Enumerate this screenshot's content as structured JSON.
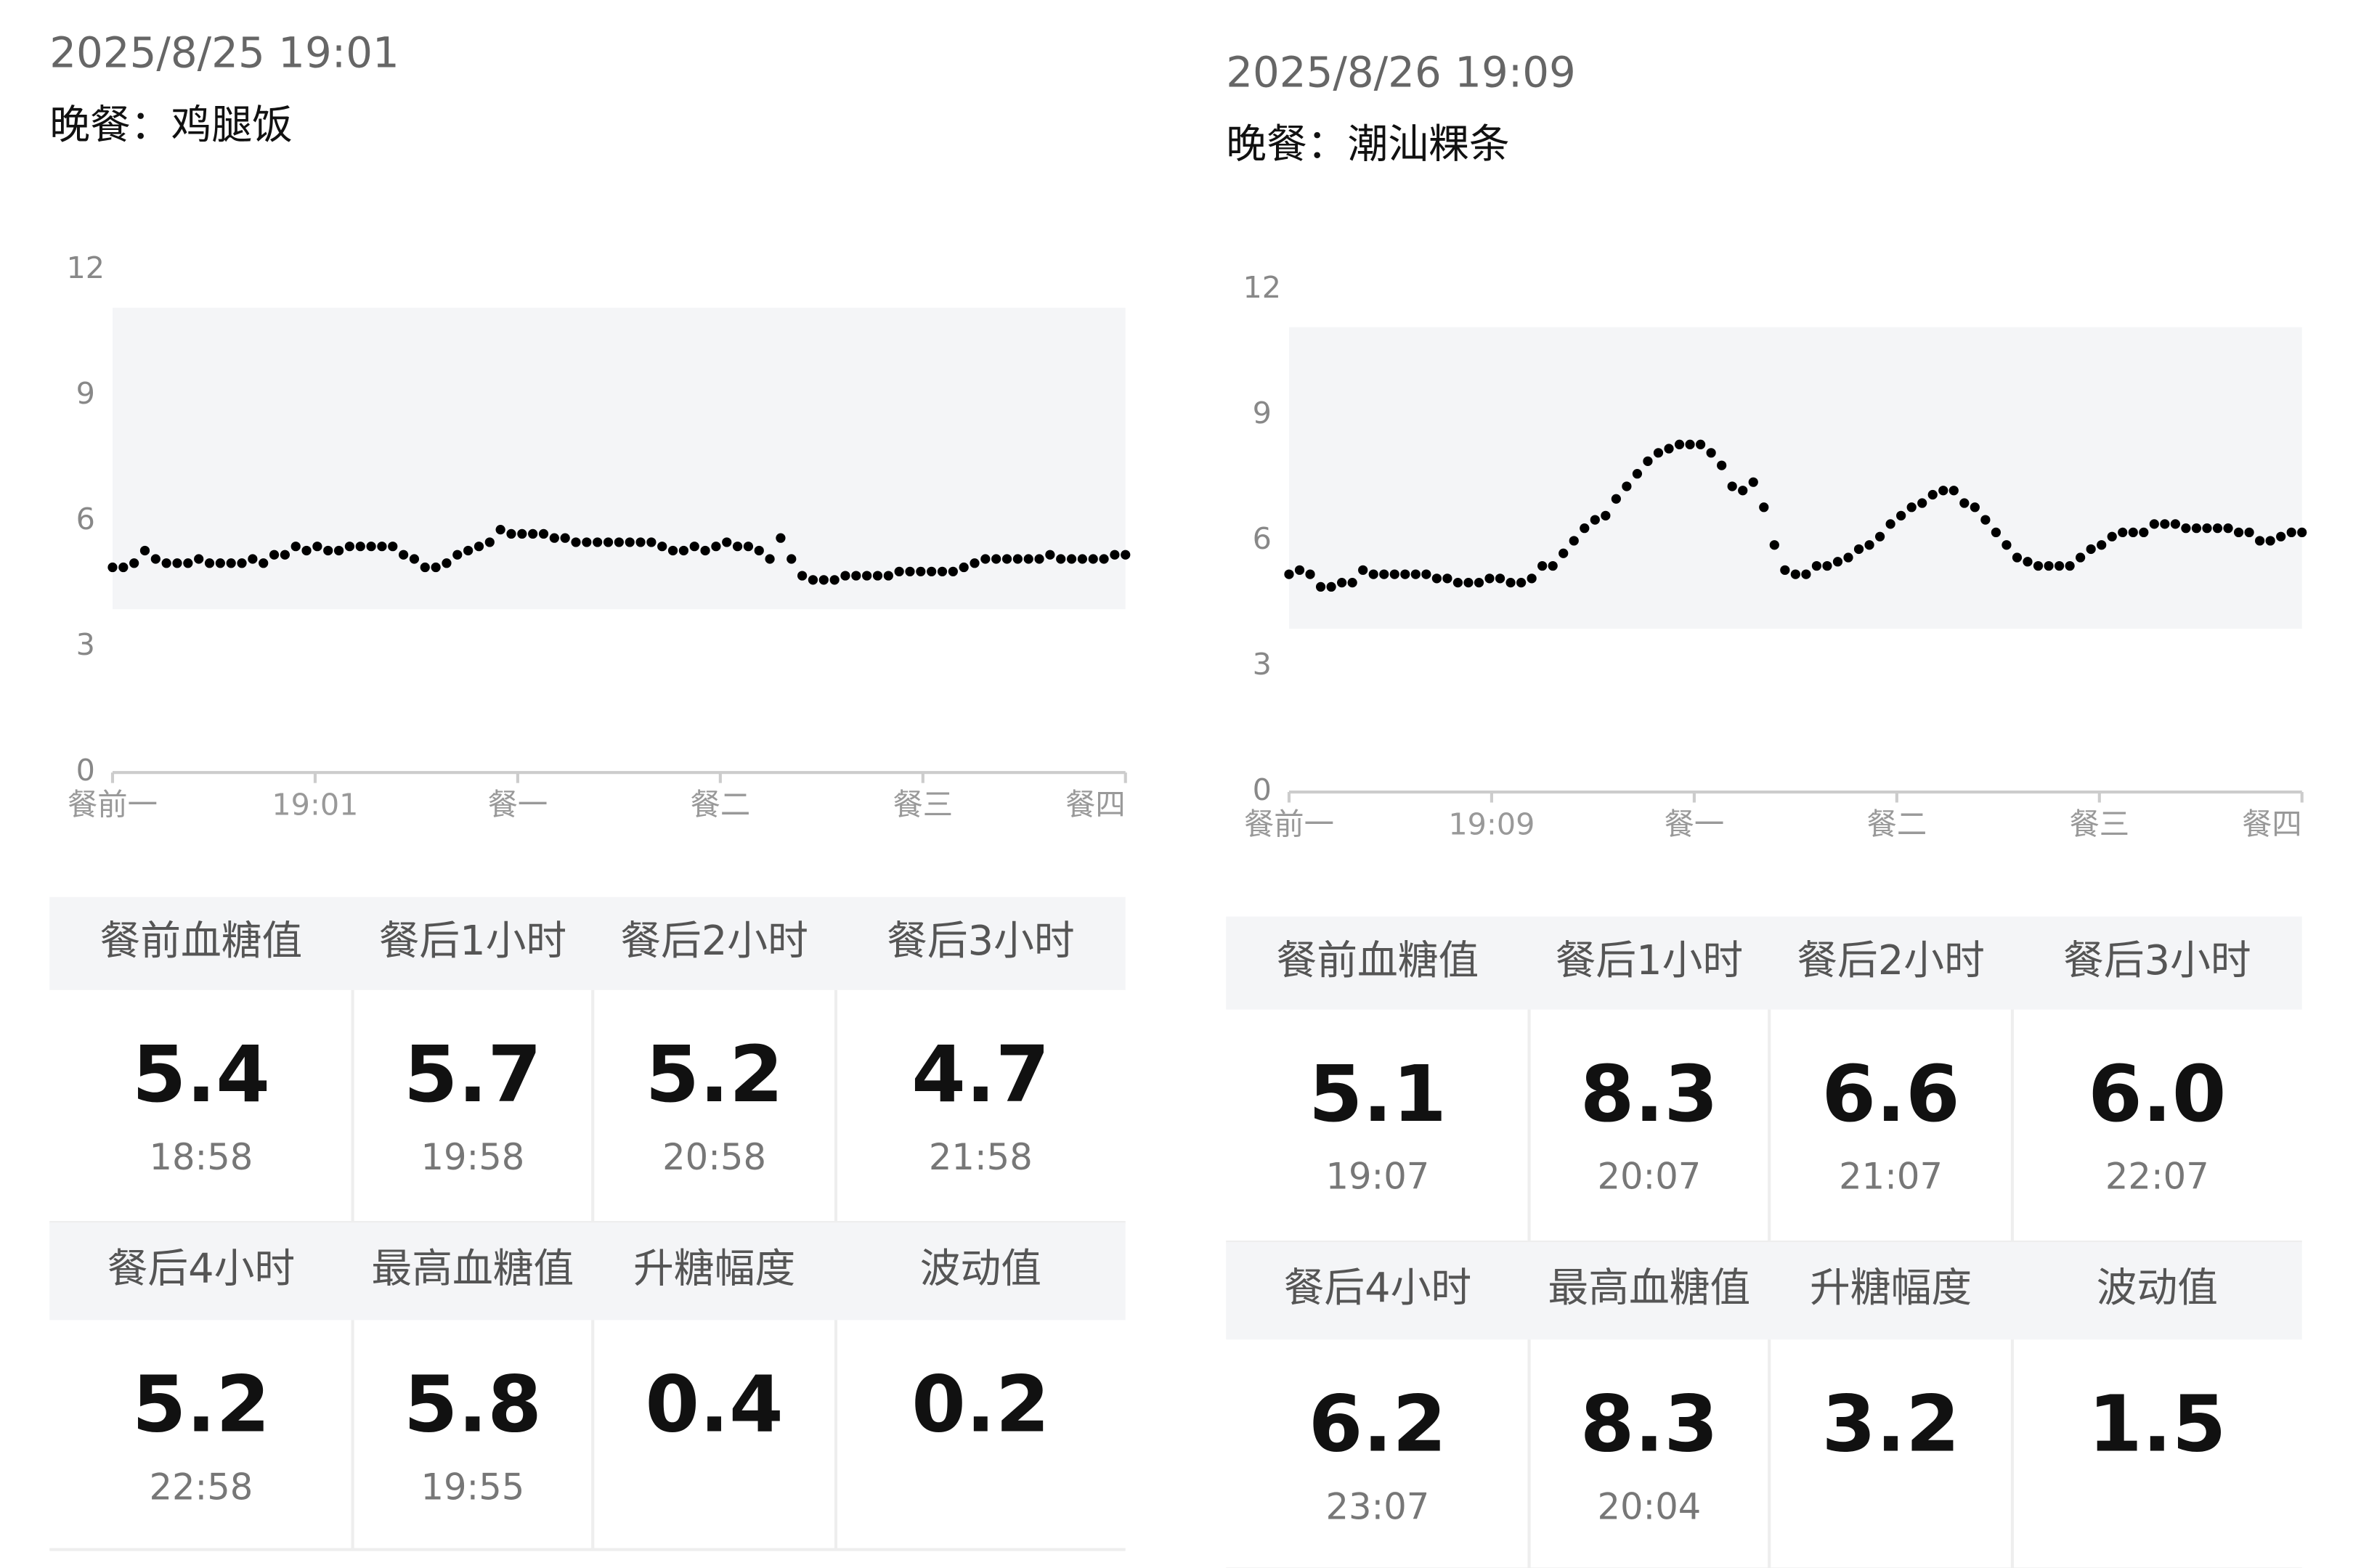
{
  "panels": [
    {
      "date": "2025/8/25 19:01",
      "meal": "晚餐：鸡腿饭",
      "table": {
        "rows": [
          {
            "headers": [
              "餐前血糖值",
              "餐后1小时",
              "餐后2小时",
              "餐后3小时"
            ],
            "cells": [
              {
                "value": "5.4",
                "time": "18:58"
              },
              {
                "value": "5.7",
                "time": "19:58"
              },
              {
                "value": "5.2",
                "time": "20:58"
              },
              {
                "value": "4.7",
                "time": "21:58"
              }
            ]
          },
          {
            "headers": [
              "餐后4小时",
              "最高血糖值",
              "升糖幅度",
              "波动值"
            ],
            "cells": [
              {
                "value": "5.2",
                "time": "22:58"
              },
              {
                "value": "5.8",
                "time": "19:55"
              },
              {
                "value": "0.4"
              },
              {
                "value": "0.2"
              }
            ]
          }
        ]
      }
    },
    {
      "date": "2025/8/26 19:09",
      "meal": "晚餐：潮汕粿条",
      "table": {
        "rows": [
          {
            "headers": [
              "餐前血糖值",
              "餐后1小时",
              "餐后2小时",
              "餐后3小时"
            ],
            "cells": [
              {
                "value": "5.1",
                "time": "19:07"
              },
              {
                "value": "8.3",
                "time": "20:07"
              },
              {
                "value": "6.6",
                "time": "21:07"
              },
              {
                "value": "6.0",
                "time": "22:07"
              }
            ]
          },
          {
            "headers": [
              "餐后4小时",
              "最高血糖值",
              "升糖幅度",
              "波动值"
            ],
            "cells": [
              {
                "value": "6.2",
                "time": "23:07"
              },
              {
                "value": "8.3",
                "time": "20:04"
              },
              {
                "value": "3.2"
              },
              {
                "value": "1.5"
              }
            ]
          }
        ]
      }
    }
  ],
  "chart_data": [
    {
      "type": "dot",
      "color": "#000000",
      "band_color": "#f4f5f7",
      "target_range": [
        3.9,
        11.1
      ],
      "ylim": [
        0,
        12
      ],
      "yticks": [
        0,
        3,
        6,
        9,
        12
      ],
      "x_labels": [
        "餐前一",
        "19:01",
        "餐一",
        "餐二",
        "餐三",
        "餐四"
      ],
      "values": [
        4.9,
        4.9,
        5.0,
        5.3,
        5.1,
        5.0,
        5.0,
        5.0,
        5.1,
        5.0,
        5.0,
        5.0,
        5.0,
        5.1,
        5.0,
        5.2,
        5.2,
        5.4,
        5.3,
        5.4,
        5.3,
        5.3,
        5.4,
        5.4,
        5.4,
        5.4,
        5.4,
        5.2,
        5.1,
        4.9,
        4.9,
        5.0,
        5.2,
        5.3,
        5.4,
        5.5,
        5.8,
        5.7,
        5.7,
        5.7,
        5.7,
        5.6,
        5.6,
        5.5,
        5.5,
        5.5,
        5.5,
        5.5,
        5.5,
        5.5,
        5.5,
        5.4,
        5.3,
        5.3,
        5.4,
        5.3,
        5.4,
        5.5,
        5.4,
        5.4,
        5.3,
        5.1,
        5.6,
        5.1,
        4.7,
        4.6,
        4.6,
        4.6,
        4.7,
        4.7,
        4.7,
        4.7,
        4.7,
        4.8,
        4.8,
        4.8,
        4.8,
        4.8,
        4.8,
        4.9,
        5.0,
        5.1,
        5.1,
        5.1,
        5.1,
        5.1,
        5.1,
        5.2,
        5.1,
        5.1,
        5.1,
        5.1,
        5.1,
        5.2,
        5.2
      ]
    },
    {
      "type": "dot",
      "color": "#000000",
      "band_color": "#f4f5f7",
      "target_range": [
        3.9,
        11.1
      ],
      "ylim": [
        0,
        12
      ],
      "yticks": [
        0,
        3,
        6,
        9,
        12
      ],
      "x_labels": [
        "餐前一",
        "19:09",
        "餐一",
        "餐二",
        "餐三",
        "餐四"
      ],
      "values": [
        5.2,
        5.3,
        5.2,
        4.9,
        4.9,
        5.0,
        5.0,
        5.3,
        5.2,
        5.2,
        5.2,
        5.2,
        5.2,
        5.2,
        5.1,
        5.1,
        5.0,
        5.0,
        5.0,
        5.1,
        5.1,
        5.0,
        5.0,
        5.1,
        5.4,
        5.4,
        5.7,
        6.0,
        6.3,
        6.5,
        6.6,
        7.0,
        7.3,
        7.6,
        7.9,
        8.1,
        8.2,
        8.3,
        8.3,
        8.3,
        8.1,
        7.8,
        7.3,
        7.2,
        7.4,
        6.8,
        5.9,
        5.3,
        5.2,
        5.2,
        5.4,
        5.4,
        5.5,
        5.6,
        5.8,
        5.9,
        6.1,
        6.4,
        6.6,
        6.8,
        6.9,
        7.1,
        7.2,
        7.2,
        6.9,
        6.8,
        6.5,
        6.2,
        5.9,
        5.6,
        5.5,
        5.4,
        5.4,
        5.4,
        5.4,
        5.6,
        5.8,
        5.9,
        6.1,
        6.2,
        6.2,
        6.2,
        6.4,
        6.4,
        6.4,
        6.3,
        6.3,
        6.3,
        6.3,
        6.3,
        6.2,
        6.2,
        6.0,
        6.0,
        6.1,
        6.2,
        6.2
      ]
    }
  ]
}
